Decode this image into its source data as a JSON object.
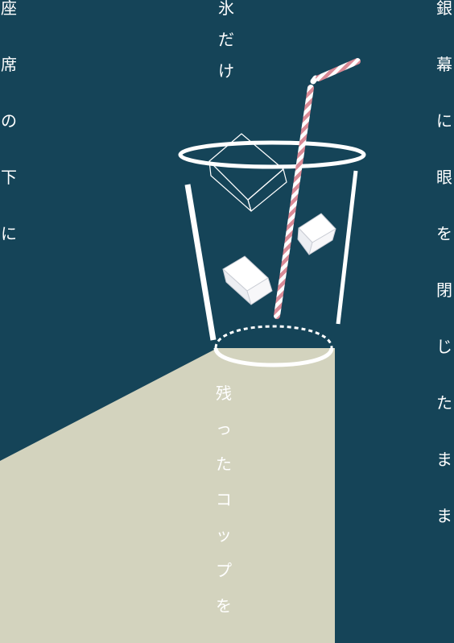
{
  "colors": {
    "background": "#154458",
    "light_beam": "#d3d3be",
    "line": "#ffffff",
    "straw_stripe": "#d98a96"
  },
  "texts": {
    "left_column": [
      "座",
      "席",
      "の",
      "下",
      "に"
    ],
    "top_column": [
      "氷",
      "だ",
      "け"
    ],
    "bottom_column": [
      "残",
      "っ",
      "た",
      "コ",
      "ッ",
      "プ",
      "を"
    ],
    "right_column": [
      "銀",
      "幕",
      "に",
      "眼",
      "を",
      "閉",
      "じ",
      "た",
      "ま",
      "ま"
    ]
  },
  "icons": [
    "glass-illustration",
    "straw-illustration",
    "ice-cube-illustration"
  ]
}
